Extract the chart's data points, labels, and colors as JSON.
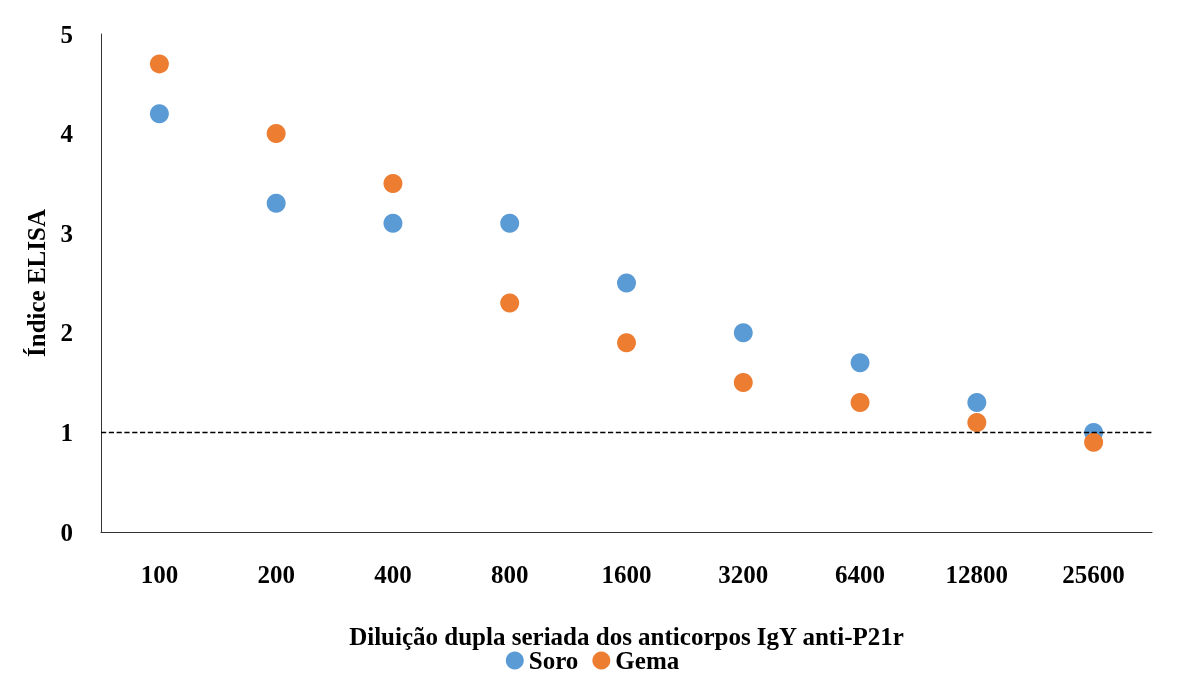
{
  "chart_data": {
    "type": "scatter",
    "xlabel": "Diluição dupla seriada dos anticorpos IgY anti-P21r",
    "ylabel": "Índice ELISA",
    "categories": [
      "100",
      "200",
      "400",
      "800",
      "1600",
      "3200",
      "6400",
      "12800",
      "25600"
    ],
    "series": [
      {
        "name": "Soro",
        "color": "#5b9bd5",
        "values": [
          4.2,
          3.3,
          3.1,
          3.1,
          2.5,
          2.0,
          1.7,
          1.3,
          1.0
        ]
      },
      {
        "name": "Gema",
        "color": "#ed7d31",
        "values": [
          4.7,
          4.0,
          3.5,
          2.3,
          1.9,
          1.5,
          1.3,
          1.1,
          0.9
        ]
      }
    ],
    "ylim": [
      0,
      5
    ],
    "yticks": [
      0,
      1,
      2,
      3,
      4,
      5
    ],
    "grid": false,
    "legend": "bottom",
    "marker": "circle",
    "ref_lines": [
      {
        "axis": "y",
        "value": 1,
        "color": "#000000",
        "line_style": "dashed"
      }
    ]
  }
}
